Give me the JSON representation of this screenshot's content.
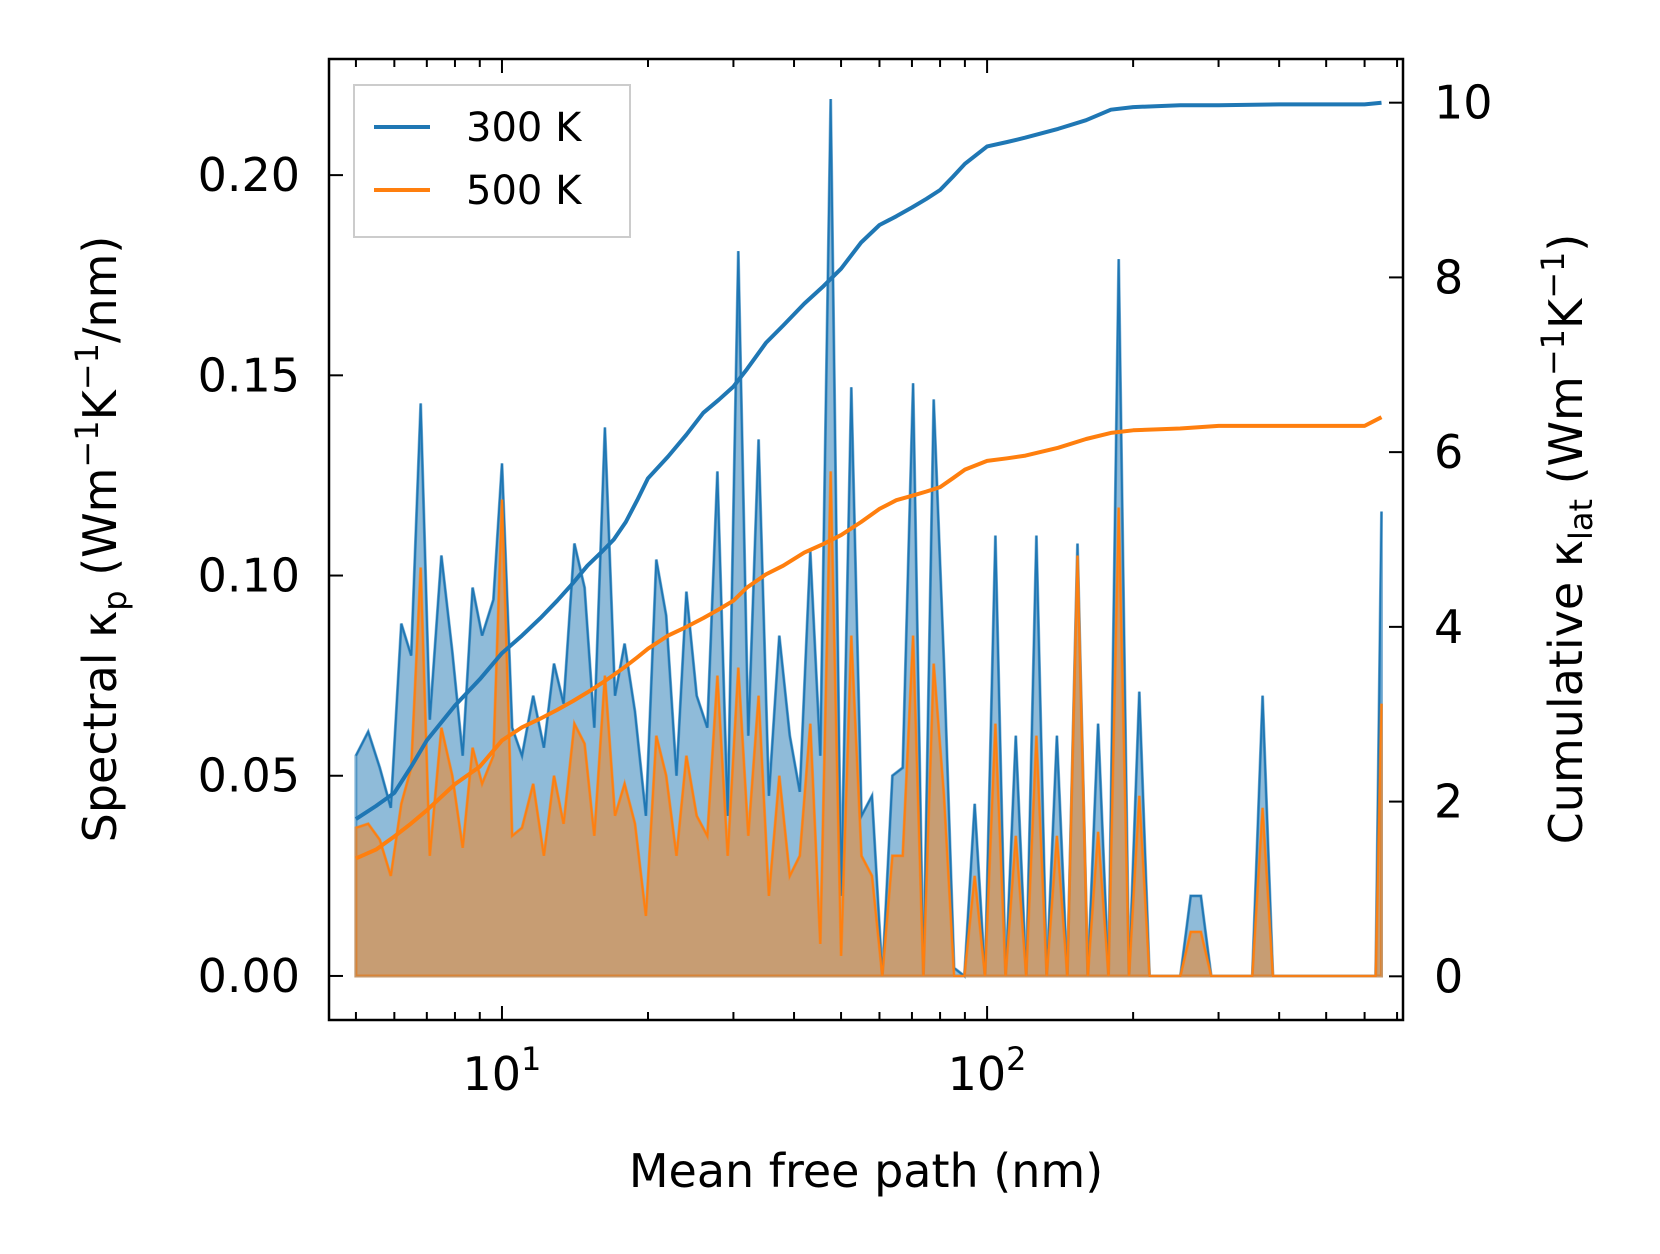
{
  "chart_data": {
    "type": "area",
    "xlabel": "Mean free path (nm)",
    "ylabel_left": {
      "main": "Spectral κ",
      "sub": "p",
      "unit_open": " (Wm",
      "sup1": "−1",
      "mid": "K",
      "sup2": "−1",
      "unit_close": "/nm)"
    },
    "ylabel_right": {
      "main": "Cumulative κ",
      "sub": "lat",
      "unit_open": " (Wm",
      "sup1": "−1",
      "mid": "K",
      "sup2": "−1",
      "unit_close": ")"
    },
    "xscale": "log",
    "xlim": [
      4.4,
      720
    ],
    "ylim_left": [
      -0.011,
      0.229
    ],
    "ylim_right": [
      -0.5,
      10.5
    ],
    "x_ticks": [
      {
        "value": 10,
        "base": "10",
        "exp": "1"
      },
      {
        "value": 100,
        "base": "10",
        "exp": "2"
      }
    ],
    "y_left_ticks": [
      {
        "value": 0.0,
        "label": "0.00"
      },
      {
        "value": 0.05,
        "label": "0.05"
      },
      {
        "value": 0.1,
        "label": "0.10"
      },
      {
        "value": 0.15,
        "label": "0.15"
      },
      {
        "value": 0.2,
        "label": "0.20"
      }
    ],
    "y_right_ticks": [
      {
        "value": 0,
        "label": "0"
      },
      {
        "value": 2,
        "label": "2"
      },
      {
        "value": 4,
        "label": "4"
      },
      {
        "value": 6,
        "label": "6"
      },
      {
        "value": 8,
        "label": "8"
      },
      {
        "value": 10,
        "label": "10"
      }
    ],
    "legend": {
      "position": "top-left",
      "entries": [
        {
          "label": "300 K",
          "color": "#1f77b4"
        },
        {
          "label": "500 K",
          "color": "#ff7f0e"
        }
      ]
    },
    "spectral_x": [
      5.0,
      5.3,
      5.6,
      5.9,
      6.2,
      6.5,
      6.8,
      7.1,
      7.5,
      7.9,
      8.3,
      8.7,
      9.1,
      9.6,
      10.0,
      10.5,
      11.0,
      11.6,
      12.2,
      12.8,
      13.4,
      14.1,
      14.8,
      15.5,
      16.3,
      17.1,
      17.9,
      18.8,
      19.8,
      20.8,
      21.8,
      22.9,
      24.0,
      25.2,
      26.5,
      27.8,
      29.2,
      30.7,
      32.2,
      33.8,
      35.5,
      37.3,
      39.2,
      41.1,
      43.2,
      45.3,
      47.6,
      50.0,
      52.5,
      55.1,
      57.9,
      60.8,
      63.8,
      67.0,
      70.4,
      73.9,
      77.6,
      81.5,
      85.5,
      89.8,
      94.3,
      99.0,
      104.0,
      109.2,
      114.6,
      120.4,
      126.4,
      132.7,
      139.3,
      146.3,
      153.6,
      161.3,
      169.4,
      177.9,
      186.8,
      196.1,
      205.9,
      216.2,
      227.0,
      238.4,
      250.3,
      262.8,
      275.9,
      289.7,
      304.2,
      319.4,
      335.4,
      352.2,
      369.8,
      388.3,
      407.7,
      428.1,
      449.5,
      472.0,
      495.6,
      520.4,
      546.4,
      573.7,
      602.4,
      632.5,
      650.0
    ],
    "spectral_300K": [
      0.055,
      0.061,
      0.052,
      0.042,
      0.088,
      0.08,
      0.143,
      0.064,
      0.105,
      0.081,
      0.055,
      0.097,
      0.085,
      0.094,
      0.128,
      0.062,
      0.055,
      0.07,
      0.057,
      0.078,
      0.068,
      0.108,
      0.097,
      0.062,
      0.137,
      0.07,
      0.083,
      0.066,
      0.04,
      0.104,
      0.09,
      0.05,
      0.096,
      0.07,
      0.062,
      0.126,
      0.04,
      0.181,
      0.06,
      0.134,
      0.045,
      0.085,
      0.06,
      0.046,
      0.106,
      0.055,
      0.219,
      0.02,
      0.147,
      0.04,
      0.045,
      0.0,
      0.05,
      0.052,
      0.148,
      0.0,
      0.144,
      0.078,
      0.002,
      0.0,
      0.043,
      0.0,
      0.11,
      0.0,
      0.06,
      0.0,
      0.11,
      0.0,
      0.06,
      0.0,
      0.108,
      0.0,
      0.063,
      0.0,
      0.179,
      0.0,
      0.071,
      0.0,
      0.0,
      0.0,
      0.0,
      0.02,
      0.02,
      0.0,
      0.0,
      0.0,
      0.0,
      0.0,
      0.07,
      0.0,
      0.0,
      0.0,
      0.0,
      0.0,
      0.0,
      0.0,
      0.0,
      0.0,
      0.0,
      0.0,
      0.116
    ],
    "spectral_500K": [
      0.037,
      0.038,
      0.034,
      0.025,
      0.043,
      0.052,
      0.102,
      0.03,
      0.062,
      0.05,
      0.032,
      0.057,
      0.048,
      0.055,
      0.119,
      0.035,
      0.037,
      0.048,
      0.03,
      0.05,
      0.038,
      0.063,
      0.058,
      0.035,
      0.075,
      0.04,
      0.048,
      0.038,
      0.015,
      0.06,
      0.05,
      0.03,
      0.055,
      0.04,
      0.035,
      0.075,
      0.03,
      0.077,
      0.035,
      0.07,
      0.02,
      0.05,
      0.025,
      0.03,
      0.063,
      0.008,
      0.126,
      0.005,
      0.085,
      0.03,
      0.025,
      0.0,
      0.03,
      0.03,
      0.085,
      0.0,
      0.078,
      0.045,
      0.0,
      0.0,
      0.025,
      0.0,
      0.063,
      0.0,
      0.035,
      0.0,
      0.06,
      0.0,
      0.035,
      0.0,
      0.105,
      0.0,
      0.036,
      0.0,
      0.117,
      0.0,
      0.045,
      0.0,
      0.0,
      0.0,
      0.0,
      0.011,
      0.011,
      0.0,
      0.0,
      0.0,
      0.0,
      0.0,
      0.042,
      0.0,
      0.0,
      0.0,
      0.0,
      0.0,
      0.0,
      0.0,
      0.0,
      0.0,
      0.0,
      0.0,
      0.068
    ],
    "cumulative_x": [
      5.0,
      5.5,
      6.0,
      6.5,
      7.0,
      8.0,
      9.0,
      10.0,
      11.0,
      12.0,
      13.0,
      14.0,
      15.0,
      16.0,
      17.0,
      18.0,
      19.0,
      20.0,
      22.0,
      24.0,
      26.0,
      28.0,
      30.0,
      32.0,
      35.0,
      38.0,
      42.0,
      46.0,
      50.0,
      55.0,
      60.0,
      65.0,
      70.0,
      75.0,
      80.0,
      85.0,
      90.0,
      100.0,
      110.0,
      120.0,
      140.0,
      160.0,
      180.0,
      200.0,
      250.0,
      300.0,
      400.0,
      500.0,
      600.0,
      650.0
    ],
    "cumulative_300K": [
      1.8,
      1.95,
      2.1,
      2.4,
      2.7,
      3.1,
      3.4,
      3.7,
      3.9,
      4.1,
      4.3,
      4.5,
      4.7,
      4.85,
      5.0,
      5.2,
      5.45,
      5.7,
      5.95,
      6.2,
      6.45,
      6.6,
      6.75,
      6.95,
      7.25,
      7.45,
      7.7,
      7.9,
      8.1,
      8.4,
      8.6,
      8.7,
      8.8,
      8.9,
      9.0,
      9.15,
      9.3,
      9.5,
      9.55,
      9.6,
      9.7,
      9.8,
      9.92,
      9.95,
      9.97,
      9.97,
      9.98,
      9.98,
      9.98,
      10.0
    ],
    "cumulative_500K": [
      1.35,
      1.45,
      1.6,
      1.75,
      1.9,
      2.2,
      2.4,
      2.7,
      2.85,
      2.95,
      3.05,
      3.15,
      3.25,
      3.35,
      3.45,
      3.55,
      3.65,
      3.75,
      3.9,
      4.0,
      4.1,
      4.2,
      4.3,
      4.45,
      4.6,
      4.7,
      4.85,
      4.95,
      5.05,
      5.2,
      5.35,
      5.45,
      5.5,
      5.55,
      5.6,
      5.7,
      5.8,
      5.9,
      5.93,
      5.96,
      6.05,
      6.15,
      6.22,
      6.25,
      6.27,
      6.3,
      6.3,
      6.3,
      6.3,
      6.4
    ]
  }
}
